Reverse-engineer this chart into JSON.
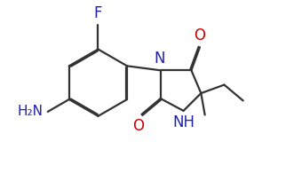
{
  "bg_color": "#ffffff",
  "bond_color": "#333333",
  "n_color": "#2020aa",
  "o_color": "#cc0000",
  "lw": 1.6,
  "dbo": 0.014,
  "figsize": [
    3.22,
    1.95
  ],
  "dpi": 100,
  "xlim": [
    0,
    3.22
  ],
  "ylim": [
    0,
    1.95
  ]
}
